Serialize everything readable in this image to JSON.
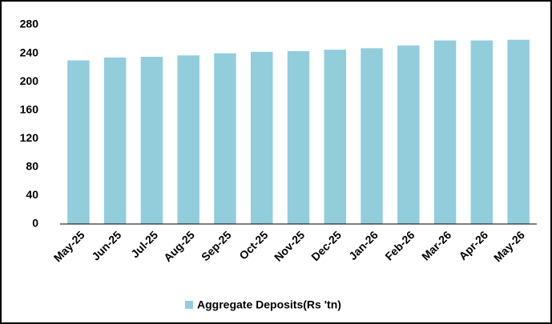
{
  "chart_data": {
    "type": "bar",
    "categories": [
      "May-25",
      "Jun-25",
      "Jul-25",
      "Aug-25",
      "Sep-25",
      "Oct-25",
      "Nov-25",
      "Dec-25",
      "Jan-26",
      "Feb-26",
      "Mar-26",
      "Apr-26",
      "May-26"
    ],
    "series": [
      {
        "name": "Aggregate Deposits(Rs 'tn)",
        "color": "#92cddc",
        "values": [
          230,
          234,
          235,
          237,
          240,
          242,
          243,
          245,
          247,
          251,
          258,
          258,
          259
        ]
      }
    ],
    "ylim": [
      0,
      280
    ],
    "yticks": [
      0,
      40,
      80,
      120,
      160,
      200,
      240,
      280
    ],
    "grid": false
  }
}
